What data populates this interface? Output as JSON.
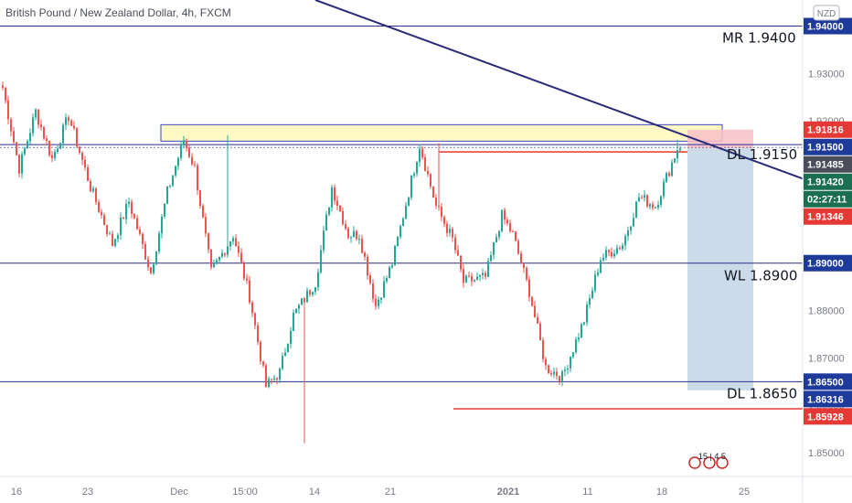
{
  "title": "British Pound / New Zealand Dollar, 4h, FXCM",
  "currency_badge": "NZD",
  "colors": {
    "up": "#26a69a",
    "down": "#ef5350",
    "level_line": "#2a2e8c",
    "trend_line": "#2a2a78",
    "resistance_zone": "#fff9c4",
    "stop_zone": "#f7c1c7",
    "target_zone": "#c5d7e8",
    "red_line": "#e53935",
    "price_badge_red": "#e53935",
    "price_badge_blue": "#1e3a9a",
    "countdown_badge": "#1a6e52"
  },
  "chart_data": {
    "type": "candlestick",
    "symbol": "GBPNZD",
    "timeframe": "4h",
    "ylim": [
      1.845,
      1.9455
    ],
    "y_ticks": [
      "1.85000",
      "1.86000",
      "1.87000",
      "1.88000",
      "1.89000",
      "1.90000",
      "1.91000",
      "1.92000",
      "1.93000",
      "1.94000"
    ],
    "x_ticks": [
      "16",
      "23",
      "Dec",
      "15:00",
      "14",
      "21",
      "2021",
      "11",
      "18",
      "25"
    ],
    "levels": [
      {
        "label": "MR 1.9400",
        "price": 1.94
      },
      {
        "label": "DL 1.9150",
        "price": 1.915
      },
      {
        "label": "WL 1.8900",
        "price": 1.89
      },
      {
        "label": "DL 1.8650",
        "price": 1.865
      }
    ],
    "price_labels": [
      {
        "text": "1.94000",
        "price": 1.94,
        "style": "blue"
      },
      {
        "text": "1.91816",
        "price": 1.91816,
        "style": "red"
      },
      {
        "text": "1.91500",
        "price": 1.915,
        "style": "blue"
      },
      {
        "text": "1.91485",
        "price": 1.91485,
        "style": "gray"
      },
      {
        "text": "1.91420",
        "price": 1.9142,
        "style": "green"
      },
      {
        "text": "02:27:11",
        "price": 1.9123,
        "style": "green"
      },
      {
        "text": "1.91346",
        "price": 1.91346,
        "style": "red"
      },
      {
        "text": "1.89000",
        "price": 1.89,
        "style": "blue"
      },
      {
        "text": "1.86500",
        "price": 1.865,
        "style": "blue"
      },
      {
        "text": "1.86316",
        "price": 1.86316,
        "style": "blue"
      },
      {
        "text": "1.85928",
        "price": 1.85928,
        "style": "red"
      }
    ],
    "current_price": 1.9142,
    "stop_level": 1.91816,
    "target_level": 1.86316,
    "low_line": 1.85928,
    "resistance_zone": [
      1.915,
      1.9165
    ],
    "trend_line": {
      "from": [
        "2020-11-11",
        1.947
      ],
      "to": [
        "2021-01-25",
        1.9082
      ]
    },
    "markers": {
      "text": "15 | 4 5"
    },
    "keypoints": [
      [
        0,
        1.927
      ],
      [
        6,
        1.91
      ],
      [
        12,
        1.922
      ],
      [
        18,
        1.912
      ],
      [
        24,
        1.921
      ],
      [
        32,
        1.906
      ],
      [
        40,
        1.894
      ],
      [
        46,
        1.903
      ],
      [
        54,
        1.888
      ],
      [
        60,
        1.905
      ],
      [
        66,
        1.916
      ],
      [
        70,
        1.91
      ],
      [
        76,
        1.888
      ],
      [
        84,
        1.896
      ],
      [
        90,
        1.883
      ],
      [
        96,
        1.864
      ],
      [
        101,
        1.867
      ],
      [
        106,
        1.879
      ],
      [
        114,
        1.886
      ],
      [
        120,
        1.906
      ],
      [
        126,
        1.896
      ],
      [
        130,
        1.896
      ],
      [
        136,
        1.881
      ],
      [
        142,
        1.89
      ],
      [
        152,
        1.915
      ],
      [
        158,
        1.902
      ],
      [
        164,
        1.895
      ],
      [
        168,
        1.886
      ],
      [
        176,
        1.887
      ],
      [
        182,
        1.9
      ],
      [
        186,
        1.896
      ],
      [
        192,
        1.884
      ],
      [
        198,
        1.868
      ],
      [
        204,
        1.866
      ],
      [
        212,
        1.878
      ],
      [
        218,
        1.891
      ],
      [
        226,
        1.894
      ],
      [
        232,
        1.904
      ],
      [
        238,
        1.902
      ],
      [
        246,
        1.9142
      ]
    ]
  }
}
